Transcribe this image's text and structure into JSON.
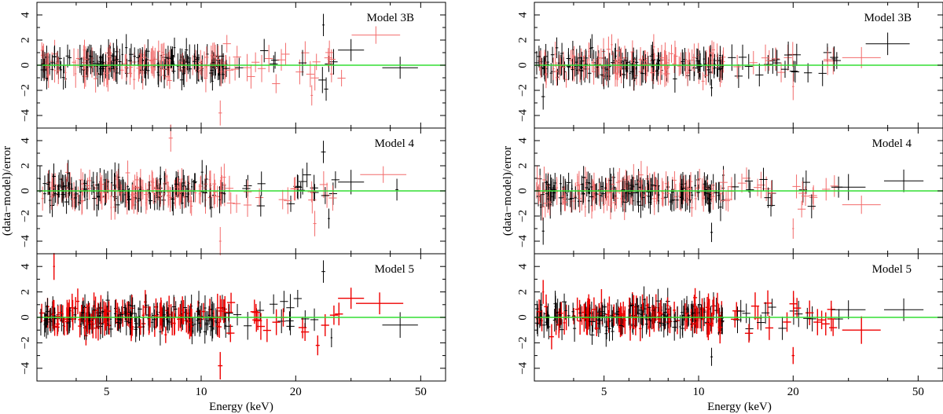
{
  "chart_data": {
    "type": "scatter",
    "description_ylabel": "(data−model)/error",
    "xlabel": "Energy (keV)",
    "x_scale": "log",
    "xlim": [
      3,
      60
    ],
    "ylim": [
      -5,
      5
    ],
    "x_tick_labels": [
      {
        "value": 5,
        "label": "5"
      },
      {
        "value": 10,
        "label": "10"
      },
      {
        "value": 20,
        "label": "20"
      },
      {
        "value": 50,
        "label": "50"
      }
    ],
    "y_tick_labels": [
      {
        "value": -4,
        "label": "−4"
      },
      {
        "value": -2,
        "label": "−2"
      },
      {
        "value": 0,
        "label": "0"
      },
      {
        "value": 2,
        "label": "2"
      },
      {
        "value": 4,
        "label": "4"
      }
    ],
    "reference_line": {
      "y": 0,
      "color": "#33dd33"
    },
    "series_colors": {
      "black": "#000000",
      "light_red": "#f26b6b",
      "red": "#ee0000"
    },
    "columns": [
      {
        "panels": [
          {
            "label": "Model 3B",
            "red_style": "light_red",
            "seed": 11,
            "outliers": [
              {
                "x": 24.5,
                "y": 3.2,
                "c": "black"
              },
              {
                "x": 36,
                "y": 2.4,
                "c": "red",
                "xw": 7
              },
              {
                "x": 30,
                "y": 1.2,
                "c": "black",
                "xw": 3
              },
              {
                "x": 43,
                "y": -0.2,
                "c": "black",
                "xw": 6
              },
              {
                "x": 22.5,
                "y": -2.4,
                "c": "red"
              },
              {
                "x": 25,
                "y": -1.9,
                "c": "black"
              },
              {
                "x": 11.5,
                "y": -3.8,
                "c": "red"
              },
              {
                "x": 26,
                "y": -0.7,
                "c": "red"
              }
            ]
          },
          {
            "label": "Model 4",
            "red_style": "light_red",
            "seed": 23,
            "outliers": [
              {
                "x": 24.5,
                "y": 3.1,
                "c": "black"
              },
              {
                "x": 38,
                "y": 1.3,
                "c": "red",
                "xw": 7
              },
              {
                "x": 30,
                "y": 0.7,
                "c": "black",
                "xw": 3
              },
              {
                "x": 42,
                "y": 0.1,
                "c": "black"
              },
              {
                "x": 23,
                "y": -2.6,
                "c": "red"
              },
              {
                "x": 25.5,
                "y": -2.2,
                "c": "black"
              },
              {
                "x": 11.5,
                "y": -4.0,
                "c": "red"
              },
              {
                "x": 8,
                "y": 4.2,
                "c": "red"
              }
            ]
          },
          {
            "label": "Model 5",
            "red_style": "red",
            "seed": 37,
            "outliers": [
              {
                "x": 24.5,
                "y": 3.6,
                "c": "black"
              },
              {
                "x": 37,
                "y": 1.1,
                "c": "red",
                "xw": 7
              },
              {
                "x": 30,
                "y": 1.5,
                "c": "red",
                "xw": 3
              },
              {
                "x": 43,
                "y": -0.6,
                "c": "black",
                "xw": 6
              },
              {
                "x": 23.5,
                "y": -2.2,
                "c": "red"
              },
              {
                "x": 26,
                "y": -1.6,
                "c": "black"
              },
              {
                "x": 11.5,
                "y": -3.8,
                "c": "red"
              },
              {
                "x": 3.4,
                "y": 4.0,
                "c": "red"
              }
            ]
          }
        ]
      },
      {
        "panels": [
          {
            "label": "Model 3B",
            "red_style": "light_red",
            "seed": 51,
            "outliers": [
              {
                "x": 40,
                "y": 1.7,
                "c": "black",
                "xw": 7
              },
              {
                "x": 33,
                "y": 0.6,
                "c": "red",
                "xw": 5
              },
              {
                "x": 20,
                "y": -1.7,
                "c": "red"
              },
              {
                "x": 11,
                "y": -1.8,
                "c": "black"
              },
              {
                "x": 27,
                "y": 0.5,
                "c": "black"
              },
              {
                "x": 3.2,
                "y": -2.5,
                "c": "black"
              }
            ]
          },
          {
            "label": "Model 4",
            "red_style": "light_red",
            "seed": 63,
            "outliers": [
              {
                "x": 45,
                "y": 0.8,
                "c": "black",
                "xw": 7
              },
              {
                "x": 33,
                "y": -1.1,
                "c": "red",
                "xw": 5
              },
              {
                "x": 30,
                "y": 0.3,
                "c": "black",
                "xw": 4
              },
              {
                "x": 20,
                "y": -3.0,
                "c": "red"
              },
              {
                "x": 11,
                "y": -3.3,
                "c": "black"
              },
              {
                "x": 3.2,
                "y": -3.2,
                "c": "black"
              }
            ]
          },
          {
            "label": "Model 5",
            "red_style": "red",
            "seed": 77,
            "outliers": [
              {
                "x": 45,
                "y": 0.6,
                "c": "black",
                "xw": 7
              },
              {
                "x": 33,
                "y": -1.0,
                "c": "red",
                "xw": 5
              },
              {
                "x": 30,
                "y": 0.6,
                "c": "black",
                "xw": 4
              },
              {
                "x": 20,
                "y": -3.0,
                "c": "red"
              },
              {
                "x": 11,
                "y": -3.1,
                "c": "black"
              },
              {
                "x": 3.2,
                "y": 2.0,
                "c": "red"
              }
            ]
          }
        ]
      }
    ]
  }
}
